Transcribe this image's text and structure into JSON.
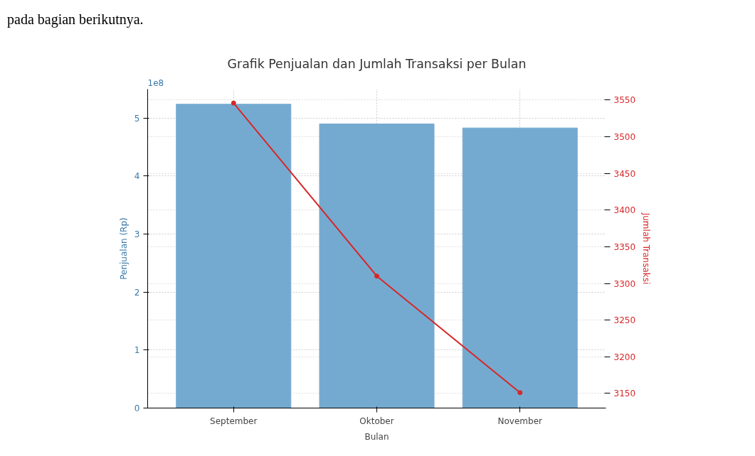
{
  "chart_data": {
    "type": "bar",
    "title": "Grafik Penjualan dan Jumlah Transaksi per Bulan",
    "xlabel": "Bulan",
    "ylabel": "Penjualan (Rp)",
    "y2label": "Jumlah Transaksi",
    "categories": [
      "September",
      "Oktober",
      "November"
    ],
    "series": [
      {
        "color": "#75aad0",
        "values": [
          5.24,
          4.9,
          4.83
        ]
      },
      {
        "type": "line",
        "axis": "y2",
        "color": "#d62728",
        "marker": "circle",
        "values": [
          3546,
          3310,
          3151
        ]
      }
    ],
    "ylim": [
      0,
      5.5
    ],
    "yticks": [
      0,
      1,
      2,
      3,
      4,
      5
    ],
    "y2lim": [
      3130,
      3565
    ],
    "y2ticks": [
      3150,
      3200,
      3250,
      3300,
      3350,
      3400,
      3450,
      3500,
      3550
    ],
    "grid": true,
    "annotations": [
      "1e8",
      "pada bagian berikutnya."
    ]
  }
}
